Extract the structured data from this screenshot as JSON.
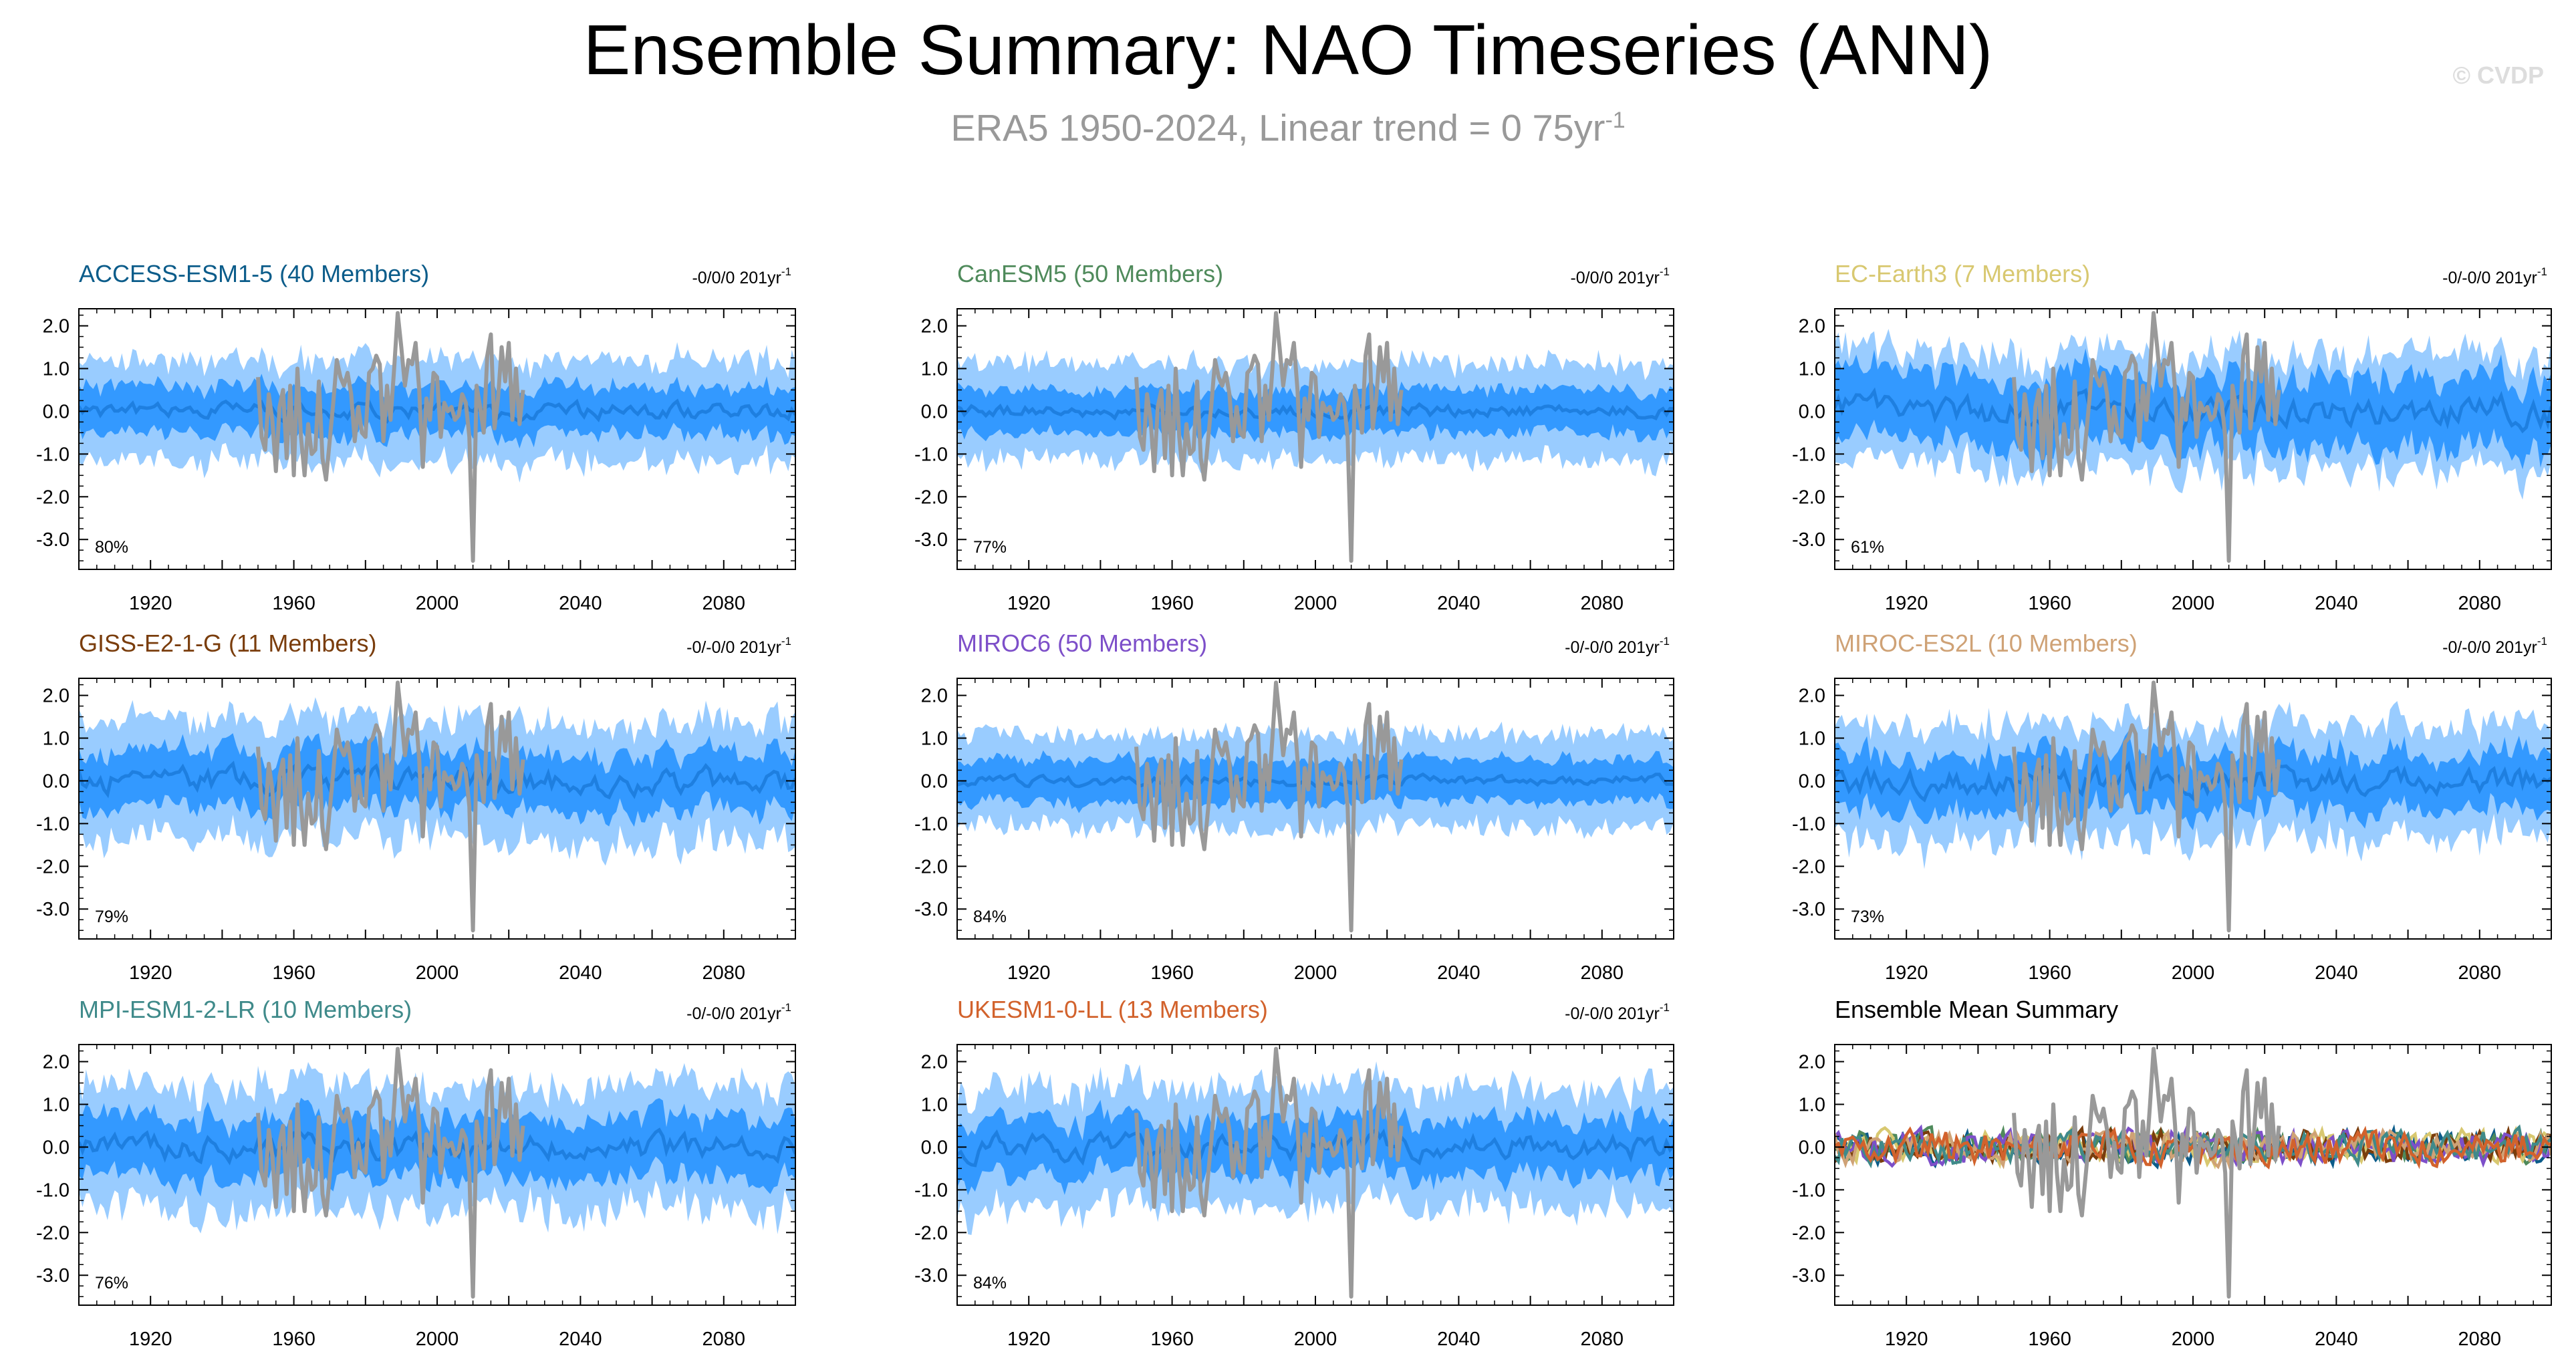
{
  "header": {
    "title": "Ensemble Summary: NAO Timeseries (ANN)",
    "subtitle_main": "ERA5 1950-2024, Linear trend = 0 75yr",
    "subtitle_sup": "-1",
    "copyright": "© CVDP"
  },
  "colors": {
    "outer_band": "#99ccff",
    "inner_band": "#3399ff",
    "ensemble_mean": "#1e7fe0",
    "observations": "#999999",
    "axis": "#000000"
  },
  "chart_data": [
    {
      "type": "area",
      "title": "ACCESS-ESM1-5 (40 Members)",
      "title_color": "#0b5c8a",
      "trend_label": "-0/0/0 201yr",
      "trend_sup": "-1",
      "pct_label": "80%",
      "x_ticks": [
        1920,
        1960,
        2000,
        2040,
        2080
      ],
      "y_ticks": [
        "2.0",
        "1.0",
        "0.0",
        "-1.0",
        "-2.0",
        "-3.0"
      ],
      "xlim": [
        1900,
        2100
      ],
      "ylim": [
        -3.7,
        2.4
      ],
      "seed": 11,
      "outer_amp": 1.15,
      "inner_amp": 0.55,
      "mean_amp": 0.18
    },
    {
      "type": "area",
      "title": "CanESM5 (50 Members)",
      "title_color": "#4f8a5b",
      "trend_label": "-0/0/0 201yr",
      "trend_sup": "-1",
      "pct_label": "77%",
      "x_ticks": [
        1920,
        1960,
        2000,
        2040,
        2080
      ],
      "y_ticks": [
        "2.0",
        "1.0",
        "0.0",
        "-1.0",
        "-2.0",
        "-3.0"
      ],
      "xlim": [
        1900,
        2100
      ],
      "ylim": [
        -3.7,
        2.4
      ],
      "seed": 23,
      "outer_amp": 1.1,
      "inner_amp": 0.5,
      "mean_amp": 0.15
    },
    {
      "type": "area",
      "title": "EC-Earth3 (7 Members)",
      "title_color": "#d8c870",
      "trend_label": "-0/-0/0 201yr",
      "trend_sup": "-1",
      "pct_label": "61%",
      "x_ticks": [
        1920,
        1960,
        2000,
        2040,
        2080
      ],
      "y_ticks": [
        "2.0",
        "1.0",
        "0.0",
        "-1.0",
        "-2.0",
        "-3.0"
      ],
      "xlim": [
        1900,
        2100
      ],
      "ylim": [
        -3.7,
        2.4
      ],
      "seed": 37,
      "outer_amp": 1.3,
      "inner_amp": 0.8,
      "mean_amp": 0.35
    },
    {
      "type": "area",
      "title": "GISS-E2-1-G (11 Members)",
      "title_color": "#7a3d0c",
      "trend_label": "-0/-0/0 201yr",
      "trend_sup": "-1",
      "pct_label": "79%",
      "x_ticks": [
        1920,
        1960,
        2000,
        2040,
        2080
      ],
      "y_ticks": [
        "2.0",
        "1.0",
        "0.0",
        "-1.0",
        "-2.0",
        "-3.0"
      ],
      "xlim": [
        1900,
        2100
      ],
      "ylim": [
        -3.7,
        2.4
      ],
      "seed": 41,
      "outer_amp": 1.35,
      "inner_amp": 0.65,
      "mean_amp": 0.3
    },
    {
      "type": "area",
      "title": "MIROC6 (50 Members)",
      "title_color": "#7d4fc9",
      "trend_label": "-0/-0/0 201yr",
      "trend_sup": "-1",
      "pct_label": "84%",
      "x_ticks": [
        1920,
        1960,
        2000,
        2040,
        2080
      ],
      "y_ticks": [
        "2.0",
        "1.0",
        "0.0",
        "-1.0",
        "-2.0",
        "-3.0"
      ],
      "xlim": [
        1900,
        2100
      ],
      "ylim": [
        -3.7,
        2.4
      ],
      "seed": 53,
      "outer_amp": 1.05,
      "inner_amp": 0.5,
      "mean_amp": 0.12
    },
    {
      "type": "area",
      "title": "MIROC-ES2L (10 Members)",
      "title_color": "#cfa276",
      "trend_label": "-0/-0/0 201yr",
      "trend_sup": "-1",
      "pct_label": "73%",
      "x_ticks": [
        1920,
        1960,
        2000,
        2040,
        2080
      ],
      "y_ticks": [
        "2.0",
        "1.0",
        "0.0",
        "-1.0",
        "-2.0",
        "-3.0"
      ],
      "xlim": [
        1900,
        2100
      ],
      "ylim": [
        -3.7,
        2.4
      ],
      "seed": 67,
      "outer_amp": 1.3,
      "inner_amp": 0.65,
      "mean_amp": 0.3
    },
    {
      "type": "area",
      "title": "MPI-ESM1-2-LR (10 Members)",
      "title_color": "#3f8a8a",
      "trend_label": "-0/-0/0 201yr",
      "trend_sup": "-1",
      "pct_label": "76%",
      "x_ticks": [
        1920,
        1960,
        2000,
        2040,
        2080
      ],
      "y_ticks": [
        "2.0",
        "1.0",
        "0.0",
        "-1.0",
        "-2.0",
        "-3.0"
      ],
      "xlim": [
        1900,
        2100
      ],
      "ylim": [
        -3.7,
        2.4
      ],
      "seed": 79,
      "outer_amp": 1.4,
      "inner_amp": 0.7,
      "mean_amp": 0.3
    },
    {
      "type": "area",
      "title": "UKESM1-0-LL (13 Members)",
      "title_color": "#d2622c",
      "trend_label": "-0/-0/0 201yr",
      "trend_sup": "-1",
      "pct_label": "84%",
      "x_ticks": [
        1920,
        1960,
        2000,
        2040,
        2080
      ],
      "y_ticks": [
        "2.0",
        "1.0",
        "0.0",
        "-1.0",
        "-2.0",
        "-3.0"
      ],
      "xlim": [
        1900,
        2100
      ],
      "ylim": [
        -3.7,
        2.4
      ],
      "seed": 89,
      "outer_amp": 1.35,
      "inner_amp": 0.65,
      "mean_amp": 0.28
    },
    {
      "type": "line",
      "title": "Ensemble Mean Summary",
      "title_color": "#000000",
      "trend_label": "",
      "trend_sup": "",
      "pct_label": "",
      "x_ticks": [
        1920,
        1960,
        2000,
        2040,
        2080
      ],
      "y_ticks": [
        "2.0",
        "1.0",
        "0.0",
        "-1.0",
        "-2.0",
        "-3.0"
      ],
      "xlim": [
        1900,
        2100
      ],
      "ylim": [
        -3.7,
        2.4
      ],
      "seed": 97,
      "series_colors": [
        "#0b5c8a",
        "#4f8a5b",
        "#d8c870",
        "#7a3d0c",
        "#7d4fc9",
        "#cfa276",
        "#3f8a8a",
        "#d2622c"
      ]
    }
  ],
  "observations": {
    "name": "ERA5",
    "years": [
      1950,
      1951,
      1952,
      1953,
      1954,
      1955,
      1956,
      1957,
      1958,
      1959,
      1960,
      1961,
      1962,
      1963,
      1964,
      1965,
      1966,
      1967,
      1968,
      1969,
      1970,
      1971,
      1972,
      1973,
      1974,
      1975,
      1976,
      1977,
      1978,
      1979,
      1980,
      1981,
      1982,
      1983,
      1984,
      1985,
      1986,
      1987,
      1988,
      1989,
      1990,
      1991,
      1992,
      1993,
      1994,
      1995,
      1996,
      1997,
      1998,
      1999,
      2000,
      2001,
      2002,
      2003,
      2004,
      2005,
      2006,
      2007,
      2008,
      2009,
      2010,
      2011,
      2012,
      2013,
      2014,
      2015,
      2016,
      2017,
      2018,
      2019,
      2020,
      2021,
      2022,
      2023,
      2024
    ],
    "values": [
      0.8,
      -0.6,
      -0.9,
      0.4,
      -0.2,
      -1.4,
      0.1,
      0.5,
      -1.1,
      0.6,
      -1.5,
      1.0,
      -0.6,
      -1.5,
      -0.3,
      -1.0,
      -0.9,
      0.7,
      -1.1,
      -1.6,
      -0.7,
      0.2,
      1.2,
      0.8,
      0.6,
      0.9,
      0.4,
      -0.7,
      0.1,
      -0.5,
      -0.6,
      0.9,
      1.0,
      1.3,
      1.1,
      -0.7,
      0.6,
      -0.2,
      1.0,
      2.3,
      1.5,
      0.6,
      1.2,
      1.1,
      1.6,
      0.5,
      -1.3,
      0.3,
      -0.2,
      0.9,
      0.8,
      -0.6,
      0.2,
      0.0,
      0.1,
      -0.2,
      -0.1,
      0.4,
      0.2,
      -0.6,
      -3.5,
      0.6,
      0.1,
      -0.5,
      1.3,
      1.8,
      -0.4,
      0.3,
      1.5,
      0.7,
      1.6,
      -0.2,
      1.0,
      -0.3,
      0.5
    ]
  }
}
